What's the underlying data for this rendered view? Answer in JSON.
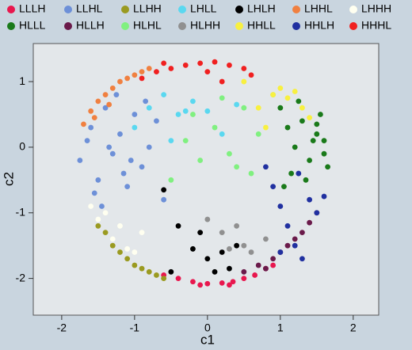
{
  "chart_data": {
    "type": "scatter",
    "xlabel": "c1",
    "ylabel": "c2",
    "xlim": [
      -2.39,
      2.35
    ],
    "ylim": [
      -2.56,
      1.58
    ],
    "xticks": [
      -2,
      -1,
      0,
      1,
      2
    ],
    "yticks": [
      -2,
      -1,
      0,
      1
    ],
    "legend": "top",
    "series": [
      {
        "name": "LLLH",
        "color": "#e8174e",
        "x": [
          -0.6,
          -0.4,
          -0.2,
          0.0,
          0.2,
          0.35,
          0.5,
          0.65,
          0.8,
          0.9,
          -0.1,
          0.3
        ],
        "values": [
          -1.95,
          -2.0,
          -2.05,
          -2.08,
          -2.07,
          -2.05,
          -2.0,
          -1.95,
          -1.85,
          -1.8,
          -2.1,
          -2.1
        ]
      },
      {
        "name": "LLHL",
        "color": "#6d90d8",
        "x": [
          -1.75,
          -1.6,
          -1.5,
          -1.4,
          -1.3,
          -1.2,
          -1.1,
          -1.0,
          -0.9,
          -0.8,
          -0.7,
          -0.6,
          -1.65,
          -1.45,
          -1.25,
          -1.05,
          -0.85,
          -1.55,
          -1.35,
          -1.15
        ],
        "values": [
          -0.2,
          0.3,
          -0.5,
          0.6,
          -0.1,
          0.2,
          -0.6,
          0.5,
          -0.3,
          0.0,
          0.4,
          -0.8,
          0.1,
          -0.9,
          0.8,
          -0.2,
          0.7,
          -0.7,
          0.0,
          -0.4
        ]
      },
      {
        "name": "LLHH",
        "color": "#9a9a20",
        "x": [
          -1.5,
          -1.4,
          -1.3,
          -1.2,
          -1.1,
          -1.0,
          -0.9,
          -0.8,
          -0.7,
          -0.6
        ],
        "values": [
          -1.2,
          -1.3,
          -1.5,
          -1.6,
          -1.7,
          -1.8,
          -1.85,
          -1.9,
          -1.95,
          -2.0
        ]
      },
      {
        "name": "LHLL",
        "color": "#5ad8f0",
        "x": [
          -1.0,
          -0.8,
          -0.6,
          -0.4,
          -0.2,
          0.0,
          0.2,
          0.4,
          -0.5,
          -0.3
        ],
        "values": [
          0.3,
          0.6,
          0.8,
          0.5,
          0.7,
          0.55,
          0.2,
          0.65,
          0.1,
          0.55
        ]
      },
      {
        "name": "LHLH",
        "color": "#000000",
        "x": [
          -0.6,
          -0.4,
          -0.2,
          0.0,
          0.1,
          0.2,
          0.3,
          0.4,
          -0.5,
          -0.1
        ],
        "values": [
          -0.65,
          -1.2,
          -1.55,
          -1.7,
          -1.9,
          -1.6,
          -1.85,
          -1.5,
          -1.9,
          -1.3
        ]
      },
      {
        "name": "LHHL",
        "color": "#f08040",
        "x": [
          -1.7,
          -1.6,
          -1.5,
          -1.4,
          -1.3,
          -1.2,
          -1.1,
          -1.0,
          -0.9,
          -0.8,
          -1.55,
          -1.35
        ],
        "values": [
          0.35,
          0.55,
          0.7,
          0.8,
          0.9,
          1.0,
          1.05,
          1.1,
          1.15,
          1.2,
          0.45,
          0.65
        ]
      },
      {
        "name": "LHHH",
        "color": "#fffff0",
        "x": [
          -1.6,
          -1.5,
          -1.4,
          -1.3,
          -1.2,
          -1.1,
          -1.0,
          -0.9
        ],
        "values": [
          -0.9,
          -1.1,
          -1.0,
          -1.4,
          -1.2,
          -1.55,
          -1.6,
          -1.3
        ]
      },
      {
        "name": "HLLL",
        "color": "#1a7a1a",
        "x": [
          1.0,
          1.1,
          1.2,
          1.3,
          1.4,
          1.5,
          1.6,
          1.65,
          1.15,
          1.35,
          1.55,
          1.25,
          1.45,
          1.05,
          1.6,
          1.5
        ],
        "values": [
          0.6,
          0.3,
          0.0,
          0.4,
          -0.2,
          0.2,
          0.1,
          -0.3,
          -0.4,
          -0.5,
          0.5,
          0.7,
          0.1,
          -0.6,
          -0.1,
          0.35
        ]
      },
      {
        "name": "HLLH",
        "color": "#6a1a4a",
        "x": [
          0.5,
          0.7,
          0.9,
          1.0,
          1.1,
          1.2,
          1.3,
          1.4,
          1.5,
          0.8
        ],
        "values": [
          -1.9,
          -1.8,
          -1.7,
          -1.6,
          -1.5,
          -1.4,
          -1.3,
          -1.15,
          -1.0,
          -1.85
        ]
      },
      {
        "name": "HLHL",
        "color": "#80f080",
        "x": [
          -0.5,
          -0.3,
          -0.1,
          0.1,
          0.3,
          0.5,
          0.7,
          0.9,
          0.4,
          -0.2,
          0.2,
          0.6
        ],
        "values": [
          -0.5,
          0.1,
          -0.2,
          0.3,
          -0.1,
          0.6,
          0.2,
          0.8,
          -0.3,
          0.5,
          0.75,
          -0.4
        ]
      },
      {
        "name": "HLHH",
        "color": "#909090",
        "x": [
          0.0,
          0.2,
          0.4,
          0.5,
          0.6,
          0.8,
          0.3
        ],
        "values": [
          -1.1,
          -1.3,
          -1.2,
          -1.5,
          -1.6,
          -1.4,
          -1.55
        ]
      },
      {
        "name": "HHLL",
        "color": "#f8f040",
        "x": [
          0.5,
          0.7,
          0.9,
          1.0,
          1.1,
          1.2,
          1.3,
          1.4,
          0.8
        ],
        "values": [
          1.0,
          0.6,
          0.8,
          0.9,
          0.75,
          0.85,
          0.6,
          0.45,
          0.3
        ]
      },
      {
        "name": "HHLH",
        "color": "#2030a0",
        "x": [
          0.8,
          0.9,
          1.0,
          1.1,
          1.2,
          1.3,
          1.4,
          1.5,
          1.6,
          1.0,
          1.25
        ],
        "values": [
          -0.3,
          -0.6,
          -0.9,
          -1.2,
          -1.5,
          -1.7,
          -0.8,
          -1.0,
          -0.75,
          -1.6,
          -0.4
        ]
      },
      {
        "name": "HHHL",
        "color": "#f02020",
        "x": [
          -0.9,
          -0.7,
          -0.5,
          -0.3,
          -0.1,
          0.1,
          0.3,
          0.5,
          0.6,
          -0.6,
          0.0,
          0.2
        ],
        "values": [
          1.05,
          1.15,
          1.2,
          1.25,
          1.28,
          1.3,
          1.25,
          1.2,
          1.1,
          1.28,
          1.15,
          1.0
        ]
      }
    ]
  }
}
